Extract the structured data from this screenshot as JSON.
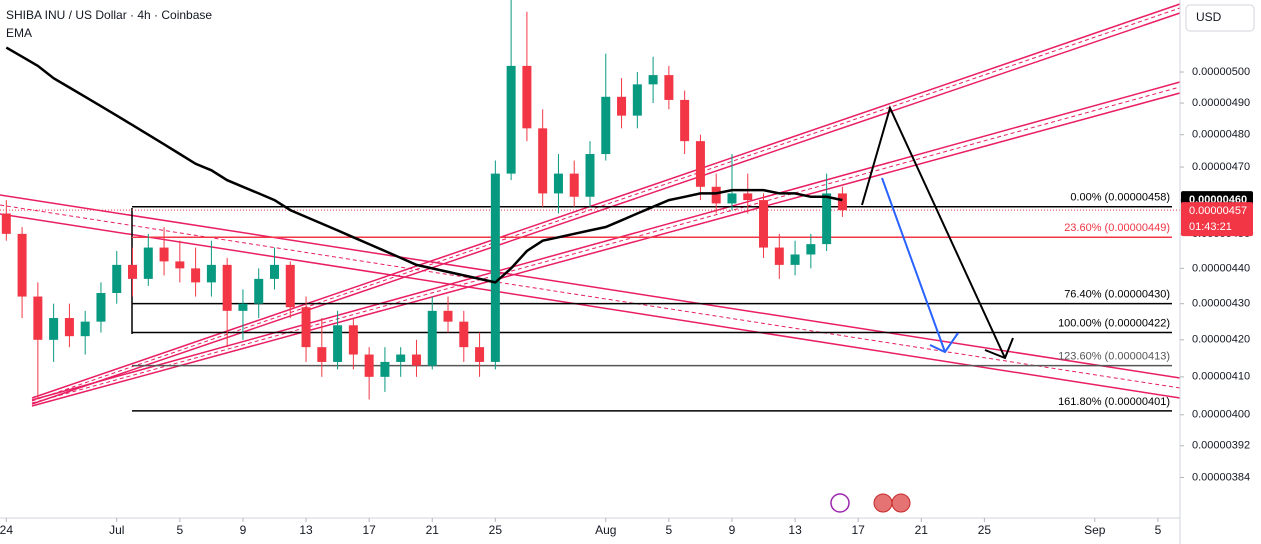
{
  "chart_data": {
    "type": "candlestick",
    "title": "SHIBA INU / US Dollar · 4h · Coinbase",
    "currency": "USD",
    "log_scale": true,
    "up_color": "#089981",
    "down_color": "#f23645",
    "xlim": [
      -0.4,
      74.4
    ],
    "ylim": [
      3.74e-06,
      5.24e-06
    ],
    "xticks": [
      {
        "value": 0,
        "label": "24"
      },
      {
        "value": 7,
        "label": "Jul"
      },
      {
        "value": 11,
        "label": "5"
      },
      {
        "value": 15,
        "label": "9"
      },
      {
        "value": 19,
        "label": "13"
      },
      {
        "value": 23,
        "label": "17"
      },
      {
        "value": 27,
        "label": "21"
      },
      {
        "value": 31,
        "label": "25"
      },
      {
        "value": 38,
        "label": "Aug"
      },
      {
        "value": 42,
        "label": "5"
      },
      {
        "value": 46,
        "label": "9"
      },
      {
        "value": 50,
        "label": "13"
      },
      {
        "value": 54,
        "label": "17"
      },
      {
        "value": 58,
        "label": "21"
      },
      {
        "value": 62,
        "label": "25"
      },
      {
        "value": 69,
        "label": "Sep"
      },
      {
        "value": 73,
        "label": "5"
      }
    ],
    "yticks": [
      {
        "value": 5e-06,
        "label": "0.00000500"
      },
      {
        "value": 4.9e-06,
        "label": "0.00000490"
      },
      {
        "value": 4.8e-06,
        "label": "0.00000480"
      },
      {
        "value": 4.7e-06,
        "label": "0.00000470"
      },
      {
        "value": 4.6e-06,
        "label": "0.00000460"
      },
      {
        "value": 4.5e-06,
        "label": "0.00000450"
      },
      {
        "value": 4.4e-06,
        "label": "0.00000440"
      },
      {
        "value": 4.3e-06,
        "label": "0.00000430"
      },
      {
        "value": 4.2e-06,
        "label": "0.00000420"
      },
      {
        "value": 4.1e-06,
        "label": "0.00000410"
      },
      {
        "value": 4e-06,
        "label": "0.00000400"
      },
      {
        "value": 3.92e-06,
        "label": "0.00000392"
      },
      {
        "value": 3.84e-06,
        "label": "0.00000384"
      }
    ],
    "x": [
      0,
      1,
      2,
      3,
      4,
      5,
      6,
      7,
      8,
      9,
      10,
      11,
      12,
      13,
      14,
      15,
      16,
      17,
      18,
      19,
      20,
      21,
      22,
      23,
      24,
      25,
      26,
      27,
      28,
      29,
      30,
      31,
      32,
      33,
      34,
      35,
      36,
      37,
      38,
      39,
      40,
      41,
      42,
      43,
      44,
      45,
      46,
      47,
      48,
      49,
      50,
      51,
      52,
      53
    ],
    "open": [
      4.56e-06,
      4.5e-06,
      4.32e-06,
      4.2e-06,
      4.26e-06,
      4.21e-06,
      4.25e-06,
      4.33e-06,
      4.41e-06,
      4.37e-06,
      4.46e-06,
      4.42e-06,
      4.4e-06,
      4.36e-06,
      4.41e-06,
      4.28e-06,
      4.3e-06,
      4.37e-06,
      4.41e-06,
      4.29e-06,
      4.18e-06,
      4.14e-06,
      4.24e-06,
      4.16e-06,
      4.1e-06,
      4.14e-06,
      4.16e-06,
      4.13e-06,
      4.28e-06,
      4.25e-06,
      4.18e-06,
      4.14e-06,
      4.68e-06,
      5.02e-06,
      4.82e-06,
      4.62e-06,
      4.68e-06,
      4.61e-06,
      4.74e-06,
      4.92e-06,
      4.86e-06,
      4.96e-06,
      4.99e-06,
      4.91e-06,
      4.78e-06,
      4.64e-06,
      4.59e-06,
      4.62e-06,
      4.6e-06,
      4.46e-06,
      4.41e-06,
      4.44e-06,
      4.47e-06,
      4.62e-06
    ],
    "high": [
      4.6e-06,
      4.52e-06,
      4.36e-06,
      4.3e-06,
      4.3e-06,
      4.28e-06,
      4.36e-06,
      4.45e-06,
      4.46e-06,
      4.5e-06,
      4.52e-06,
      4.48e-06,
      4.46e-06,
      4.48e-06,
      4.43e-06,
      4.34e-06,
      4.4e-06,
      4.46e-06,
      4.42e-06,
      4.32e-06,
      4.26e-06,
      4.28e-06,
      4.26e-06,
      4.18e-06,
      4.18e-06,
      4.18e-06,
      4.2e-06,
      4.32e-06,
      4.32e-06,
      4.28e-06,
      4.22e-06,
      4.72e-06,
      5.28e-06,
      5.2e-06,
      4.88e-06,
      4.74e-06,
      4.72e-06,
      4.78e-06,
      5.06e-06,
      4.98e-06,
      5e-06,
      5.05e-06,
      5.02e-06,
      4.94e-06,
      4.8e-06,
      4.68e-06,
      4.74e-06,
      4.68e-06,
      4.62e-06,
      4.5e-06,
      4.48e-06,
      4.5e-06,
      4.68e-06,
      4.64e-06
    ],
    "low": [
      4.48e-06,
      4.26e-06,
      4.04e-06,
      4.14e-06,
      4.18e-06,
      4.16e-06,
      4.22e-06,
      4.3e-06,
      4.32e-06,
      4.35e-06,
      4.38e-06,
      4.36e-06,
      4.32e-06,
      4.32e-06,
      4.18e-06,
      4.2e-06,
      4.26e-06,
      4.34e-06,
      4.26e-06,
      4.14e-06,
      4.1e-06,
      4.12e-06,
      4.12e-06,
      4.04e-06,
      4.06e-06,
      4.1e-06,
      4.1e-06,
      4.12e-06,
      4.22e-06,
      4.14e-06,
      4.1e-06,
      4.12e-06,
      4.66e-06,
      4.78e-06,
      4.58e-06,
      4.56e-06,
      4.58e-06,
      4.58e-06,
      4.72e-06,
      4.82e-06,
      4.82e-06,
      4.9e-06,
      4.88e-06,
      4.74e-06,
      4.6e-06,
      4.56e-06,
      4.57e-06,
      4.56e-06,
      4.43e-06,
      4.37e-06,
      4.38e-06,
      4.4e-06,
      4.45e-06,
      4.55e-06
    ],
    "close": [
      4.5e-06,
      4.32e-06,
      4.2e-06,
      4.26e-06,
      4.21e-06,
      4.25e-06,
      4.33e-06,
      4.41e-06,
      4.37e-06,
      4.46e-06,
      4.42e-06,
      4.4e-06,
      4.36e-06,
      4.41e-06,
      4.28e-06,
      4.3e-06,
      4.37e-06,
      4.41e-06,
      4.29e-06,
      4.18e-06,
      4.14e-06,
      4.24e-06,
      4.16e-06,
      4.1e-06,
      4.14e-06,
      4.16e-06,
      4.13e-06,
      4.28e-06,
      4.25e-06,
      4.18e-06,
      4.14e-06,
      4.68e-06,
      5.02e-06,
      4.82e-06,
      4.62e-06,
      4.68e-06,
      4.61e-06,
      4.74e-06,
      4.92e-06,
      4.86e-06,
      4.96e-06,
      4.99e-06,
      4.91e-06,
      4.78e-06,
      4.64e-06,
      4.59e-06,
      4.62e-06,
      4.6e-06,
      4.46e-06,
      4.41e-06,
      4.44e-06,
      4.47e-06,
      4.62e-06,
      4.57e-06
    ],
    "ema": {
      "name": "EMA",
      "color": "#000000",
      "values": [
        5.08e-06,
        5.05e-06,
        5.02e-06,
        4.98e-06,
        4.95e-06,
        4.92e-06,
        4.89e-06,
        4.86e-06,
        4.83e-06,
        4.8e-06,
        4.77e-06,
        4.74e-06,
        4.71e-06,
        4.69e-06,
        4.66e-06,
        4.64e-06,
        4.62e-06,
        4.6e-06,
        4.57e-06,
        4.55e-06,
        4.53e-06,
        4.51e-06,
        4.49e-06,
        4.47e-06,
        4.45e-06,
        4.43e-06,
        4.41e-06,
        4.4e-06,
        4.39e-06,
        4.38e-06,
        4.37e-06,
        4.36e-06,
        4.4e-06,
        4.45e-06,
        4.48e-06,
        4.49e-06,
        4.5e-06,
        4.51e-06,
        4.52e-06,
        4.54e-06,
        4.56e-06,
        4.58e-06,
        4.6e-06,
        4.61e-06,
        4.62e-06,
        4.62e-06,
        4.63e-06,
        4.63e-06,
        4.63e-06,
        4.62e-06,
        4.62e-06,
        4.61e-06,
        4.61e-06,
        4.6e-06
      ]
    },
    "ema_label": {
      "value": 4.6e-06,
      "label": "0.00000460"
    },
    "last_price": {
      "value": 4.57e-06,
      "label": "0.00000457",
      "countdown": "01:43:21"
    },
    "fib_levels": [
      {
        "value": 4.58e-06,
        "label": "0.00% (0.00000458)",
        "color": "#000000"
      },
      {
        "value": 4.49e-06,
        "label": "23.60% (0.00000449)",
        "color": "#f23645"
      },
      {
        "value": 4.3e-06,
        "label": "76.40% (0.00000430)",
        "color": "#000000"
      },
      {
        "value": 4.22e-06,
        "label": "100.00% (0.00000422)",
        "color": "#000000"
      },
      {
        "value": 4.13e-06,
        "label": "123.60% (0.00000413)",
        "color": "#555555"
      },
      {
        "value": 4.01e-06,
        "label": "161.80% (0.00000401)",
        "color": "#000000"
      }
    ]
  }
}
